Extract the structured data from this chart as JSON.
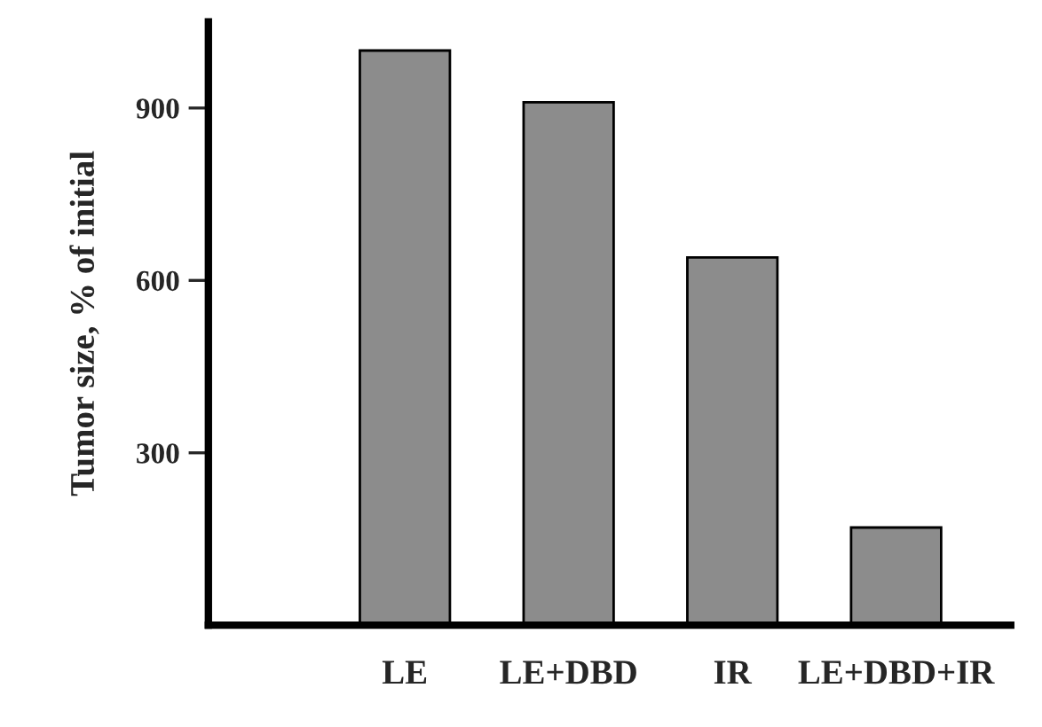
{
  "chart_data": {
    "type": "bar",
    "ylabel": "Tumor size, % of initial",
    "categories": [
      "LE",
      "LE+DBD",
      "IR",
      "LE+DBD+IR"
    ],
    "values": [
      1000,
      910,
      640,
      170
    ],
    "color": "#8c8c8c",
    "ylim": [
      0,
      1050
    ],
    "yticks": [
      300,
      600,
      900
    ],
    "grid": false,
    "legend": false
  }
}
